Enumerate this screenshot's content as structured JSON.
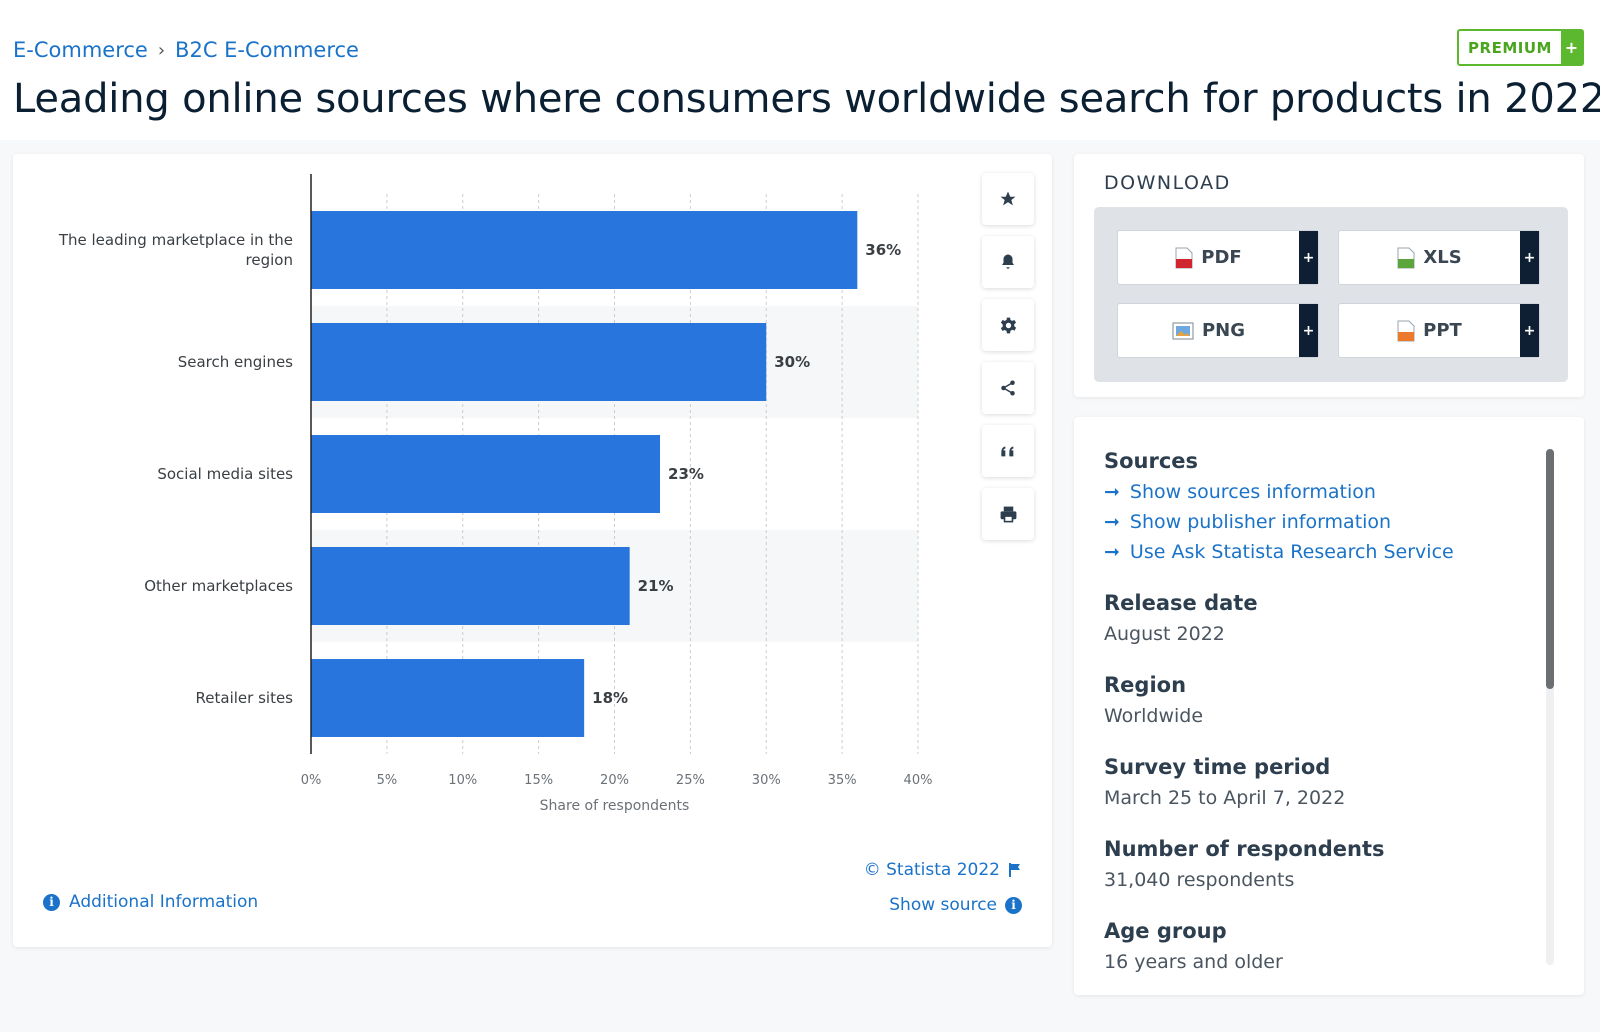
{
  "breadcrumb": {
    "items": [
      "E-Commerce",
      "B2C E-Commerce"
    ],
    "separator": "›"
  },
  "premium": {
    "label": "PREMIUM",
    "plus": "+"
  },
  "title": "Leading online sources where consumers worldwide search for products in 2022",
  "chart_data": {
    "type": "bar",
    "orientation": "horizontal",
    "categories": [
      "The leading marketplace in the region",
      "Search engines",
      "Social media sites",
      "Other marketplaces",
      "Retailer sites"
    ],
    "values": [
      36,
      30,
      23,
      21,
      18
    ],
    "value_labels": [
      "36%",
      "30%",
      "23%",
      "21%",
      "18%"
    ],
    "xlabel": "Share of respondents",
    "xticks": [
      "0%",
      "5%",
      "10%",
      "15%",
      "20%",
      "25%",
      "30%",
      "35%",
      "40%"
    ],
    "xlim": [
      0,
      40
    ],
    "grid": true,
    "bar_color": "#2876dd"
  },
  "chart_footer": {
    "credit": "© Statista 2022",
    "show_source": "Show source",
    "additional_info": "Additional Information"
  },
  "toolbar": {
    "icons": [
      "star-icon",
      "bell-icon",
      "gear-icon",
      "share-icon",
      "quote-icon",
      "print-icon"
    ]
  },
  "download": {
    "title": "DOWNLOAD",
    "buttons": [
      {
        "label": "PDF",
        "icon": "pdf-file-icon"
      },
      {
        "label": "XLS",
        "icon": "xls-file-icon"
      },
      {
        "label": "PNG",
        "icon": "png-file-icon"
      },
      {
        "label": "PPT",
        "icon": "ppt-file-icon"
      }
    ],
    "plus": "+"
  },
  "sources": {
    "heading": "Sources",
    "links": [
      "Show sources information",
      "Show publisher information",
      "Use Ask Statista Research Service"
    ],
    "arrow": "➞",
    "release_label": "Release date",
    "release_value": "August 2022",
    "region_label": "Region",
    "region_value": "Worldwide",
    "survey_label": "Survey time period",
    "survey_value": "March 25 to April 7, 2022",
    "respondents_label": "Number of respondents",
    "respondents_value": "31,040 respondents",
    "age_label": "Age group",
    "age_value": "16 years and older"
  },
  "colors": {
    "link": "#1a73c9",
    "bar": "#2876dd",
    "premium": "#5cb82e",
    "text_dark": "#0b1f33"
  }
}
